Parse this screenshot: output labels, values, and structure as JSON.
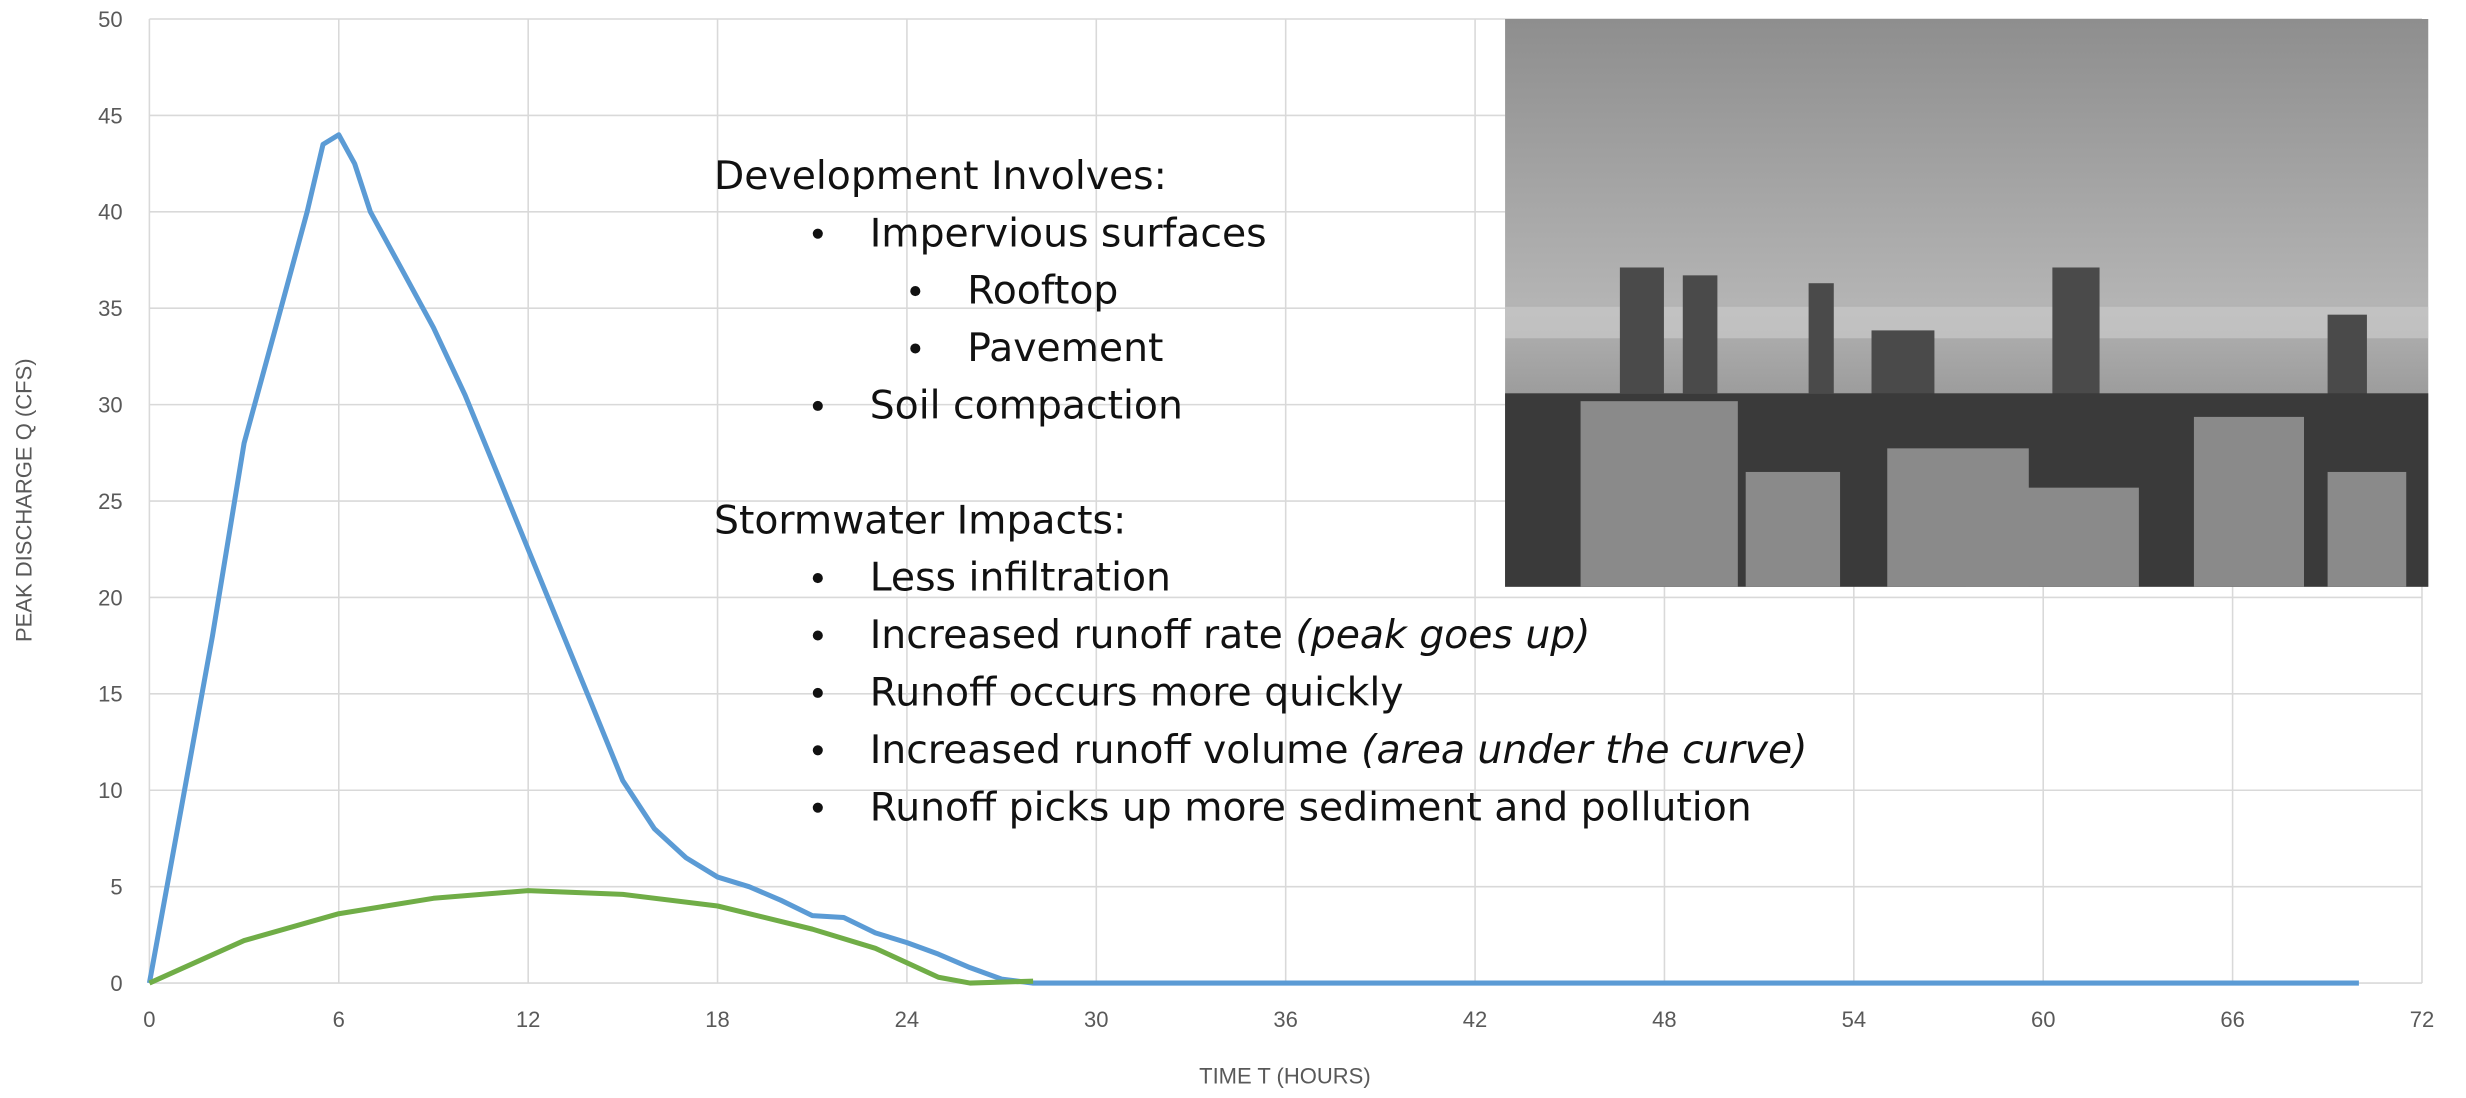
{
  "chart_data": {
    "type": "line",
    "x_label": "TIME T (HOURS)",
    "y_label": "PEAK DISCHARGE Q (CFS)",
    "xlim": [
      0,
      72
    ],
    "xticks": [
      0,
      6,
      12,
      18,
      24,
      30,
      36,
      42,
      48,
      54,
      60,
      66,
      72
    ],
    "ylim": [
      0,
      50
    ],
    "yticks": [
      0,
      5,
      10,
      15,
      20,
      25,
      30,
      35,
      40,
      45,
      50
    ],
    "grid": true,
    "series": [
      {
        "color": "#5b9bd5",
        "x": [
          0,
          1,
          2,
          3,
          4,
          5,
          5.5,
          6,
          6.5,
          7,
          8,
          9,
          10,
          11,
          12,
          13,
          14,
          15,
          16,
          17,
          18,
          19,
          20,
          21,
          22,
          23,
          24,
          25,
          26,
          27,
          28,
          70
        ],
        "values": [
          0,
          9,
          18,
          28,
          34,
          40,
          43.5,
          44,
          42.5,
          40,
          37,
          34,
          30.5,
          26.5,
          22.5,
          18.5,
          14.5,
          10.5,
          8,
          6.5,
          5.5,
          5,
          4.3,
          3.5,
          3.4,
          2.6,
          2.1,
          1.5,
          0.8,
          0.2,
          0,
          0
        ]
      },
      {
        "color": "#70ad47",
        "x": [
          0,
          3,
          6,
          9,
          12,
          15,
          18,
          21,
          23,
          25,
          26,
          28
        ],
        "values": [
          0,
          2.2,
          3.6,
          4.4,
          4.8,
          4.6,
          4,
          2.8,
          1.8,
          0.3,
          0,
          0.1
        ]
      }
    ]
  },
  "slide_text": {
    "sections": [
      {
        "heading": "Development Involves:",
        "items": [
          {
            "text": "Impervious surfaces",
            "level": 1
          },
          {
            "text": "Rooftop",
            "level": 2
          },
          {
            "text": "Pavement",
            "level": 2
          },
          {
            "text": "Soil compaction",
            "level": 1
          }
        ]
      },
      {
        "heading": "Stormwater Impacts:",
        "items": [
          {
            "text": "Less infiltration",
            "level": 1
          },
          {
            "text": "Increased runoff rate",
            "note": "(peak goes up)",
            "level": 1
          },
          {
            "text": "Runoff occurs more quickly",
            "level": 1
          },
          {
            "text": "Increased runoff volume",
            "note": "(area under the curve)",
            "level": 1
          },
          {
            "text": "Runoff picks up more sediment and pollution",
            "level": 1
          }
        ]
      }
    ]
  }
}
